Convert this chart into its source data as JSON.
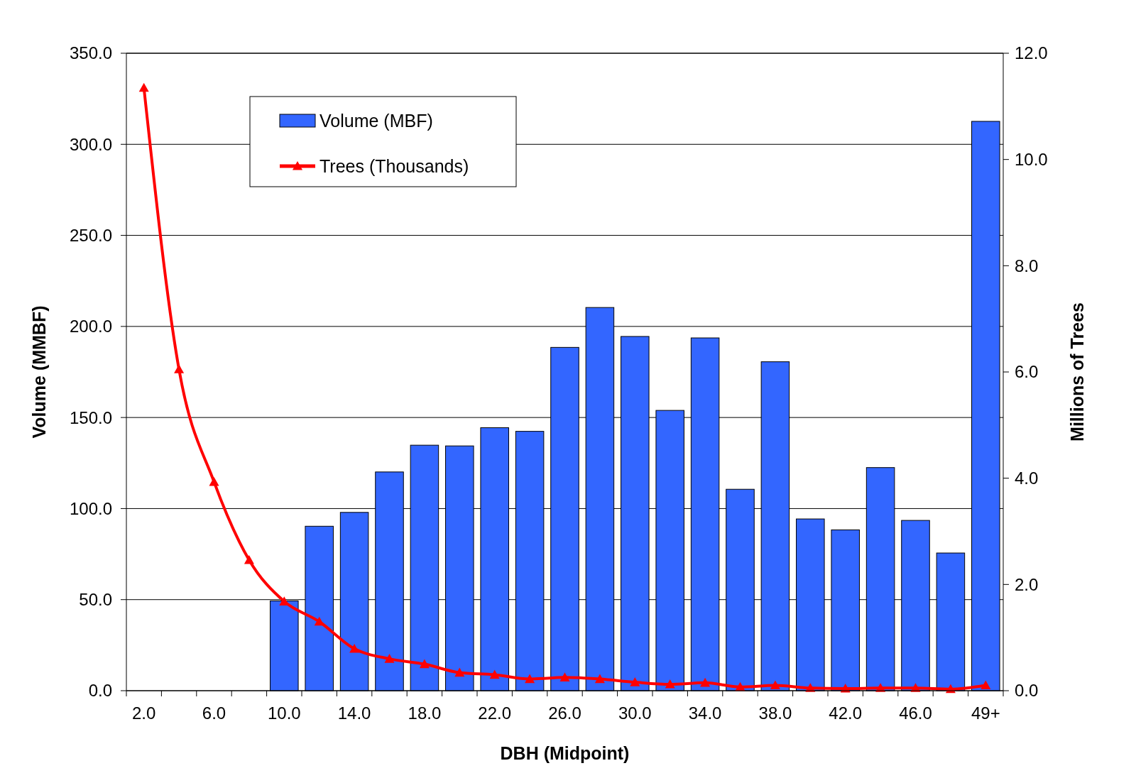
{
  "chart_data": {
    "type": "bar",
    "xlabel": "DBH (Midpoint)",
    "ylabel": "Volume (MMBF)",
    "y2label": "Millions of Trees",
    "categories": [
      "2.0",
      null,
      "6.0",
      null,
      "10.0",
      null,
      "14.0",
      null,
      "18.0",
      null,
      "22.0",
      null,
      "26.0",
      null,
      "30.0",
      null,
      "34.0",
      null,
      "38.0",
      null,
      "42.0",
      null,
      "46.0",
      null,
      "49+"
    ],
    "series": [
      {
        "name": "Volume (MBF)",
        "color": "#3366ff",
        "values": [
          null,
          null,
          null,
          null,
          49.3,
          90.3,
          97.9,
          120.1,
          134.8,
          134.4,
          144.4,
          142.4,
          188.5,
          210.4,
          194.5,
          153.9,
          193.7,
          110.6,
          180.6,
          94.3,
          88.3,
          122.5,
          93.5,
          75.6,
          312.6
        ]
      },
      {
        "name": "Trees (Thousands)",
        "type": "line",
        "axis": "y2",
        "color": "#ff0000",
        "marker": "triangle",
        "values": [
          11.35,
          6.05,
          3.93,
          2.46,
          1.68,
          1.3,
          0.79,
          0.6,
          0.5,
          0.34,
          0.3,
          0.22,
          0.25,
          0.22,
          0.16,
          0.12,
          0.15,
          0.07,
          0.1,
          0.05,
          0.04,
          0.05,
          0.05,
          0.03,
          0.1
        ]
      }
    ],
    "ylim": [
      0,
      350
    ],
    "yticks": [
      {
        "value": 0,
        "label": "0.0"
      },
      {
        "value": 50,
        "label": "50.0"
      },
      {
        "value": 100,
        "label": "100.0"
      },
      {
        "value": 150,
        "label": "150.0"
      },
      {
        "value": 200,
        "label": "200.0"
      },
      {
        "value": 250,
        "label": "250.0"
      },
      {
        "value": 300,
        "label": "300.0"
      },
      {
        "value": 350,
        "label": "350.0"
      }
    ],
    "y2lim": [
      0,
      12
    ],
    "y2ticks": [
      {
        "value": 0,
        "label": "0.0"
      },
      {
        "value": 2,
        "label": "2.0"
      },
      {
        "value": 4,
        "label": "4.0"
      },
      {
        "value": 6,
        "label": "6.0"
      },
      {
        "value": 8,
        "label": "8.0"
      },
      {
        "value": 10,
        "label": "10.0"
      },
      {
        "value": 12,
        "label": "12.0"
      }
    ],
    "grid": "y",
    "legend": "top left"
  }
}
